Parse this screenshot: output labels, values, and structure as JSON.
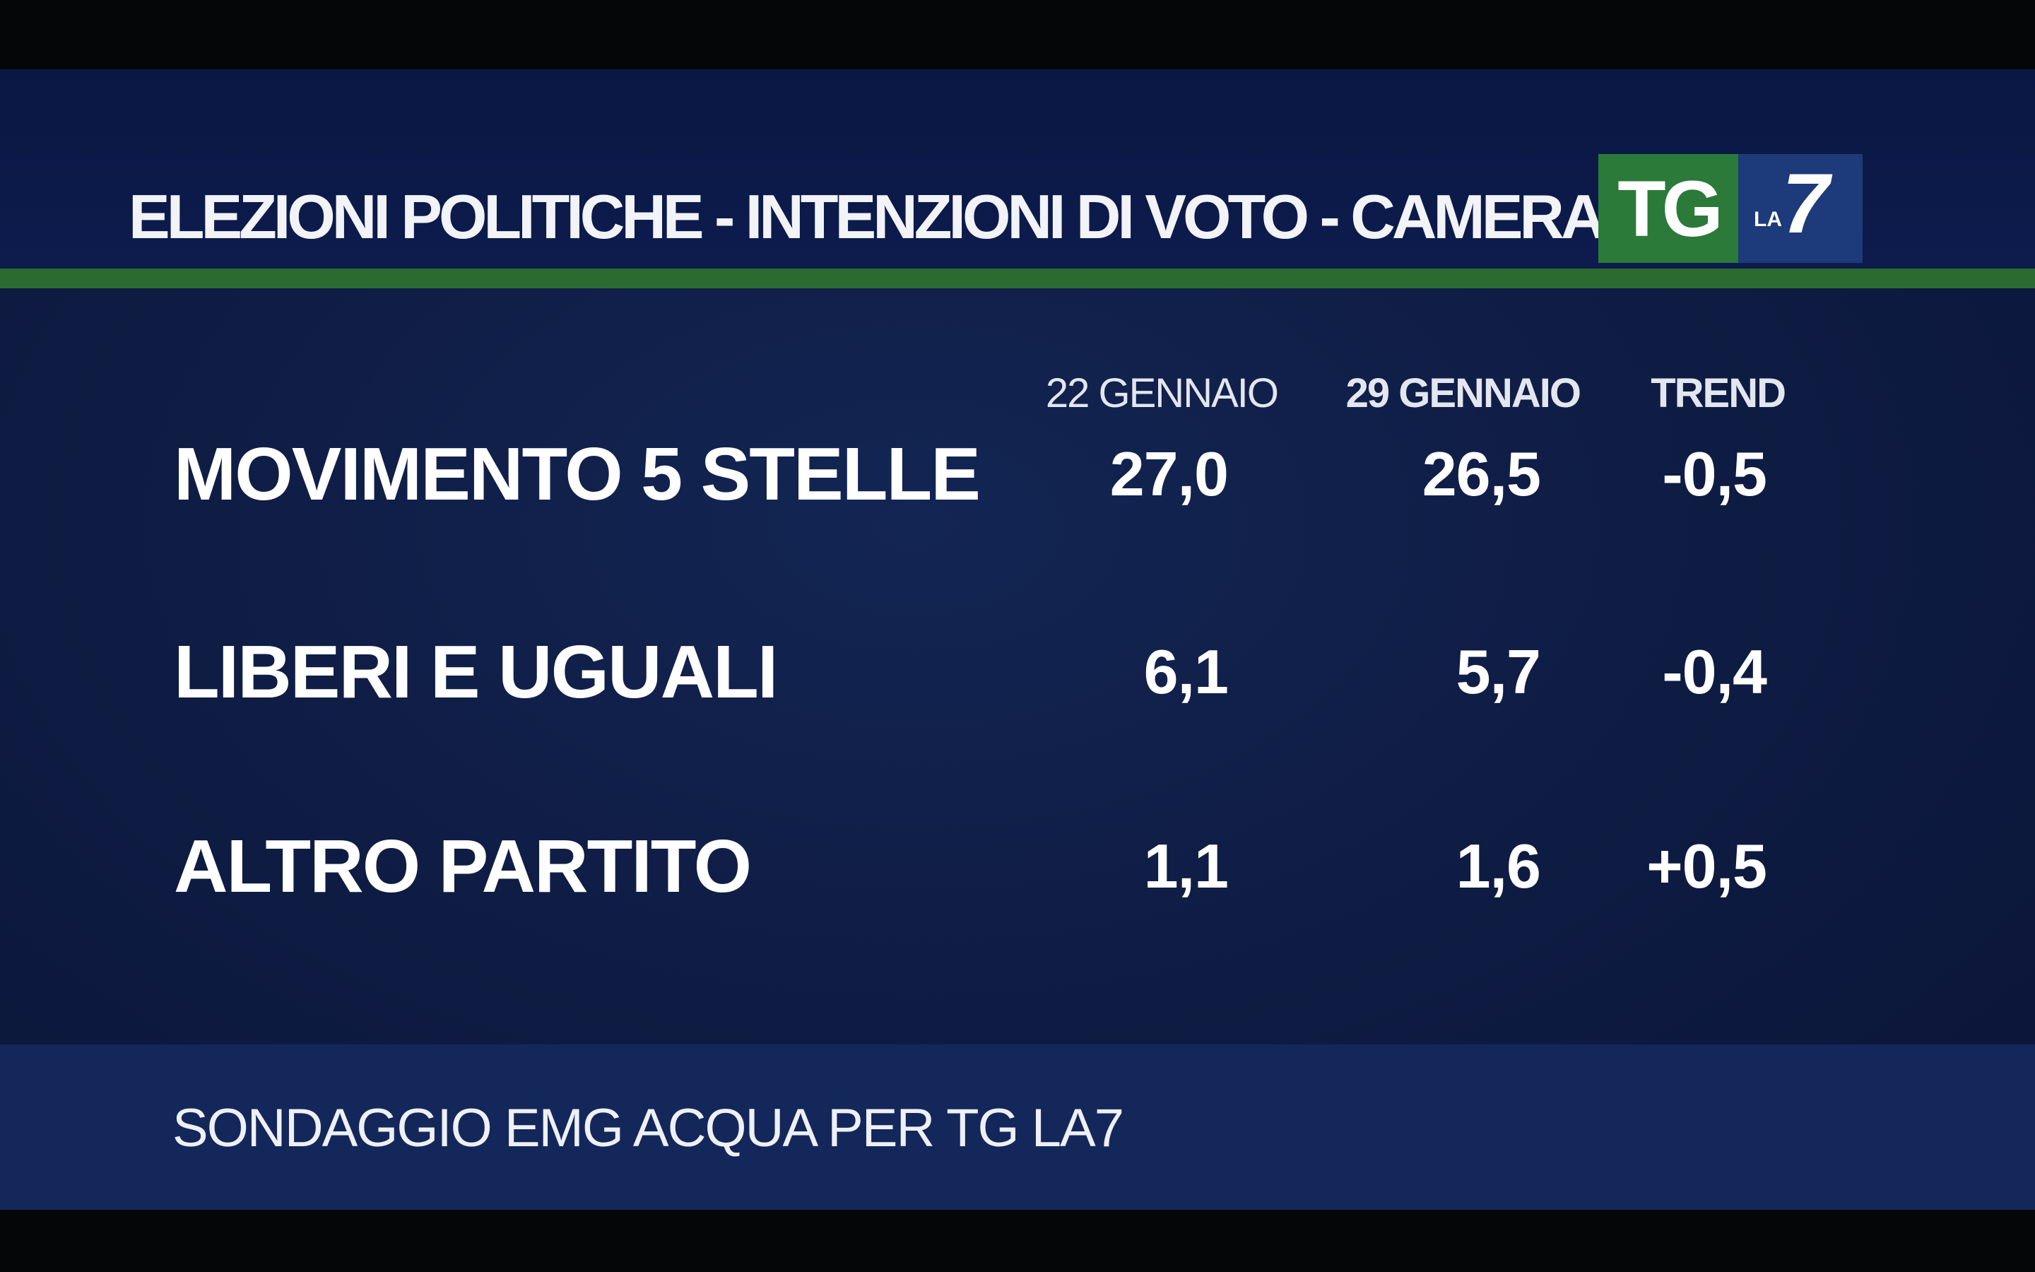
{
  "header": {
    "title": "ELEZIONI POLITICHE - INTENZIONI DI VOTO - CAMERA",
    "logo_tg": "TG",
    "logo_la": "LA",
    "logo_seven": "7"
  },
  "table": {
    "columns": [
      "22 GENNAIO",
      "29 GENNAIO",
      "TREND"
    ],
    "rows": [
      {
        "party": "MOVIMENTO 5 STELLE",
        "values": [
          "27,0",
          "26,5",
          "-0,5"
        ]
      },
      {
        "party": "LIBERI E UGUALI",
        "values": [
          "6,1",
          "5,7",
          "-0,4"
        ]
      },
      {
        "party": "ALTRO PARTITO",
        "values": [
          "1,1",
          "1,6",
          "+0,5"
        ]
      }
    ]
  },
  "footer": {
    "source": "SONDAGGIO EMG ACQUA PER TG LA7"
  },
  "colors": {
    "background": "#0f1d45",
    "rule": "#2b6b2f",
    "logo_green": "#2b7a3a",
    "logo_blue": "#1d3a7a",
    "footer": "#14275a"
  }
}
